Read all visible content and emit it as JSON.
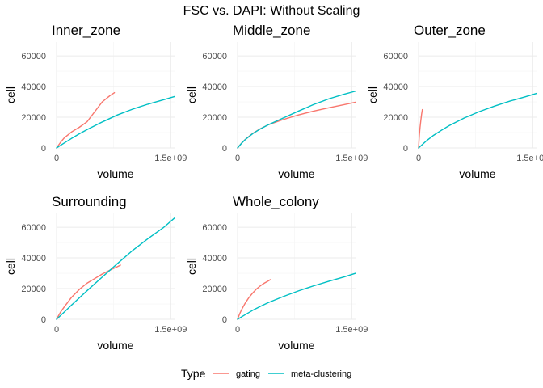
{
  "chart_data": {
    "type": "line",
    "title": "FSC vs. DAPI: Without Scaling",
    "xlabel": "volume",
    "ylabel": "cell",
    "xlim": [
      0,
      1550000000
    ],
    "ylim": [
      0,
      69000
    ],
    "x_ticks": [
      {
        "value": 0,
        "label": "0"
      },
      {
        "value": 1500000000,
        "label": "1.5e+09"
      }
    ],
    "y_ticks": [
      {
        "value": 0,
        "label": "0"
      },
      {
        "value": 20000,
        "label": "20000"
      },
      {
        "value": 40000,
        "label": "40000"
      },
      {
        "value": 60000,
        "label": "60000"
      }
    ],
    "grid": true,
    "legend": {
      "title": "Type",
      "position": "bottom",
      "entries": [
        {
          "name": "gating",
          "color": "#F8766D"
        },
        {
          "name": "meta-clustering",
          "color": "#00BFC4"
        }
      ]
    },
    "facets": [
      {
        "name": "Inner_zone",
        "series": [
          {
            "name": "gating",
            "color": "#F8766D",
            "x": [
              0,
              50000000,
              100000000,
              200000000,
              300000000,
              400000000,
              500000000,
              600000000,
              700000000,
              760000000
            ],
            "y": [
              0,
              3500,
              6500,
              10500,
              13500,
              17000,
              23500,
              30000,
              34000,
              36000
            ]
          },
          {
            "name": "meta-clustering",
            "color": "#00BFC4",
            "x": [
              0,
              100000000,
              200000000,
              300000000,
              400000000,
              600000000,
              800000000,
              1000000000,
              1200000000,
              1400000000,
              1550000000
            ],
            "y": [
              0,
              3200,
              6300,
              9200,
              11900,
              16900,
              21500,
              25300,
              28500,
              31300,
              33500
            ]
          }
        ]
      },
      {
        "name": "Middle_zone",
        "series": [
          {
            "name": "gating",
            "color": "#F8766D",
            "x": [
              0,
              50000000,
              100000000,
              200000000,
              300000000,
              400000000,
              600000000,
              800000000,
              1000000000,
              1200000000,
              1400000000,
              1550000000
            ],
            "y": [
              0,
              3000,
              5500,
              9500,
              12500,
              15000,
              18500,
              21500,
              24000,
              26200,
              28200,
              29800
            ]
          },
          {
            "name": "meta-clustering",
            "color": "#00BFC4",
            "x": [
              0,
              50000000,
              100000000,
              200000000,
              300000000,
              400000000,
              600000000,
              800000000,
              1000000000,
              1200000000,
              1400000000,
              1550000000
            ],
            "y": [
              0,
              2900,
              5400,
              9300,
              12400,
              15000,
              19500,
              24000,
              28300,
              32000,
              35000,
              37000
            ]
          }
        ]
      },
      {
        "name": "Outer_zone",
        "series": [
          {
            "name": "gating",
            "color": "#F8766D",
            "x": [
              0,
              5000000,
              10000000,
              20000000,
              30000000,
              40000000,
              50000000
            ],
            "y": [
              0,
              4000,
              8000,
              13500,
              18000,
              22000,
              25000
            ]
          },
          {
            "name": "meta-clustering",
            "color": "#00BFC4",
            "x": [
              0,
              100000000,
              200000000,
              300000000,
              400000000,
              600000000,
              800000000,
              1000000000,
              1200000000,
              1400000000,
              1550000000
            ],
            "y": [
              0,
              4500,
              8300,
              11500,
              14500,
              19500,
              23700,
              27300,
              30500,
              33300,
              35500
            ]
          }
        ]
      },
      {
        "name": "Surrounding",
        "series": [
          {
            "name": "gating",
            "color": "#F8766D",
            "x": [
              0,
              50000000,
              100000000,
              200000000,
              300000000,
              400000000,
              500000000,
              600000000,
              700000000,
              800000000,
              840000000
            ],
            "y": [
              0,
              4500,
              8000,
              14500,
              19500,
              23500,
              26500,
              29500,
              32000,
              34300,
              35300
            ]
          },
          {
            "name": "meta-clustering",
            "color": "#00BFC4",
            "x": [
              0,
              100000000,
              200000000,
              300000000,
              400000000,
              600000000,
              800000000,
              1000000000,
              1200000000,
              1400000000,
              1550000000
            ],
            "y": [
              0,
              4700,
              9400,
              14000,
              18600,
              27500,
              36300,
              44900,
              52500,
              59600,
              66000
            ]
          }
        ]
      },
      {
        "name": "Whole_colony",
        "series": [
          {
            "name": "gating",
            "color": "#F8766D",
            "x": [
              0,
              25000000,
              50000000,
              100000000,
              150000000,
              200000000,
              250000000,
              300000000,
              350000000,
              400000000,
              430000000
            ],
            "y": [
              0,
              3200,
              6000,
              10500,
              14200,
              17200,
              19800,
              21800,
              23500,
              24900,
              25800
            ]
          },
          {
            "name": "meta-clustering",
            "color": "#00BFC4",
            "x": [
              0,
              100000000,
              200000000,
              300000000,
              400000000,
              600000000,
              800000000,
              1000000000,
              1200000000,
              1400000000,
              1550000000
            ],
            "y": [
              0,
              3000,
              5900,
              8400,
              10800,
              14800,
              18500,
              21800,
              24800,
              27600,
              30000
            ]
          }
        ]
      }
    ]
  }
}
